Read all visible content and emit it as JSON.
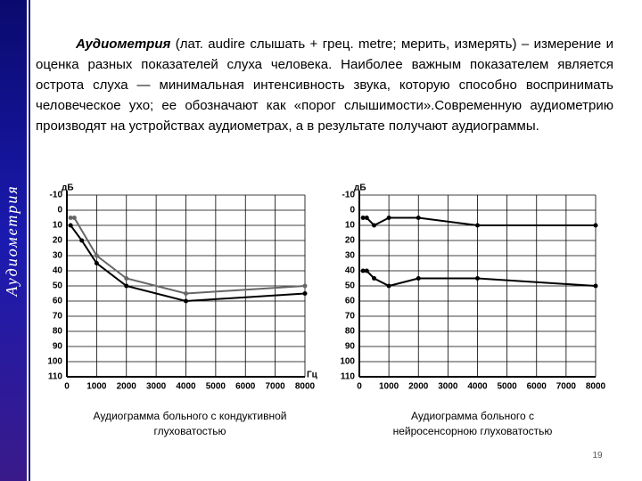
{
  "slide": {
    "side_title": "Аудиометрия",
    "term": "Аудиометрия",
    "paragraph": "(лат. audire слышать + грец. metre; мерить, измерять) – измерение и оценка разных показателей слуха человека. Наиболее важным показателем является  острота слуха — минимальная интенсивность звука, которую способно воспринимать человеческое ухо; ее обозначают как «порог слышимости».Современную аудиометрию производят на устройствах аудиометрах, а в результате получают аудиограммы.",
    "page_number": "19"
  },
  "chart_data": [
    {
      "type": "line",
      "caption": "Аудиограмма больного с кондуктивной глуховатостью",
      "y_unit": "дБ",
      "x_unit": "Гц",
      "xlim": [
        0,
        8000
      ],
      "xticks": [
        0,
        1000,
        2000,
        3000,
        4000,
        5000,
        6000,
        7000,
        8000
      ],
      "ylim": [
        110,
        -10
      ],
      "yticks": [
        -10,
        0,
        10,
        20,
        30,
        40,
        50,
        60,
        70,
        80,
        90,
        100,
        110
      ],
      "grid": true,
      "series": [
        {
          "color": "#666666",
          "x": [
            125,
            250,
            1000,
            2000,
            4000,
            8000
          ],
          "values": [
            5,
            5,
            30,
            45,
            55,
            50
          ]
        },
        {
          "color": "#000000",
          "x": [
            125,
            500,
            1000,
            2000,
            4000,
            8000
          ],
          "values": [
            10,
            20,
            35,
            50,
            60,
            55
          ]
        }
      ]
    },
    {
      "type": "line",
      "caption": "Аудиограмма больного с нейросенсорною глуховатостью",
      "y_unit": "дБ",
      "xlim": [
        0,
        8000
      ],
      "xticks": [
        0,
        1000,
        2000,
        3000,
        4000,
        5000,
        6000,
        7000,
        8000
      ],
      "ylim": [
        110,
        -10
      ],
      "yticks": [
        -10,
        0,
        10,
        20,
        30,
        40,
        50,
        60,
        70,
        80,
        90,
        100,
        110
      ],
      "grid": true,
      "series": [
        {
          "color": "#000000",
          "x": [
            125,
            250,
            500,
            1000,
            2000,
            4000,
            8000
          ],
          "values": [
            5,
            5,
            10,
            5,
            5,
            10,
            10
          ]
        },
        {
          "color": "#000000",
          "x": [
            125,
            250,
            500,
            1000,
            2000,
            4000,
            8000
          ],
          "values": [
            40,
            40,
            45,
            50,
            45,
            45,
            50
          ]
        }
      ]
    }
  ]
}
